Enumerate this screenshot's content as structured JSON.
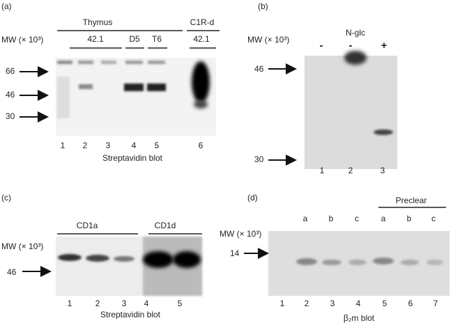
{
  "panels": [
    {
      "label": "(a)",
      "groups": [
        "Thymus",
        "C1R-d"
      ],
      "subgroups": [
        "42.1",
        "D5",
        "T6",
        "42.1"
      ],
      "mw_label": "MW (× 10³)",
      "markers": [
        "66",
        "46",
        "30"
      ],
      "lanes": [
        "1",
        "2",
        "3",
        "4",
        "5",
        "6"
      ],
      "caption": "Streptavidin blot"
    },
    {
      "label": "(b)",
      "treatment": "N-glc",
      "treatments": [
        "-",
        "-",
        "+"
      ],
      "mw_label": "MW (× 10³)",
      "markers": [
        "46",
        "30"
      ],
      "lanes": [
        "1",
        "2",
        "3"
      ]
    },
    {
      "label": "(c)",
      "groups": [
        "CD1a",
        "CD1d"
      ],
      "mw_label": "MW (× 10³)",
      "markers": [
        "46"
      ],
      "lanes": [
        "1",
        "2",
        "3",
        "4",
        "5"
      ],
      "caption": "Streptavidin blot"
    },
    {
      "label": "(d)",
      "groups": [
        "Preclear"
      ],
      "samples": [
        "a",
        "b",
        "c",
        "a",
        "b",
        "c"
      ],
      "mw_label": "MW (× 10³)",
      "markers": [
        "14"
      ],
      "lanes": [
        "1",
        "2",
        "3",
        "4",
        "5",
        "6",
        "7"
      ],
      "caption": "β₂m blot"
    }
  ]
}
